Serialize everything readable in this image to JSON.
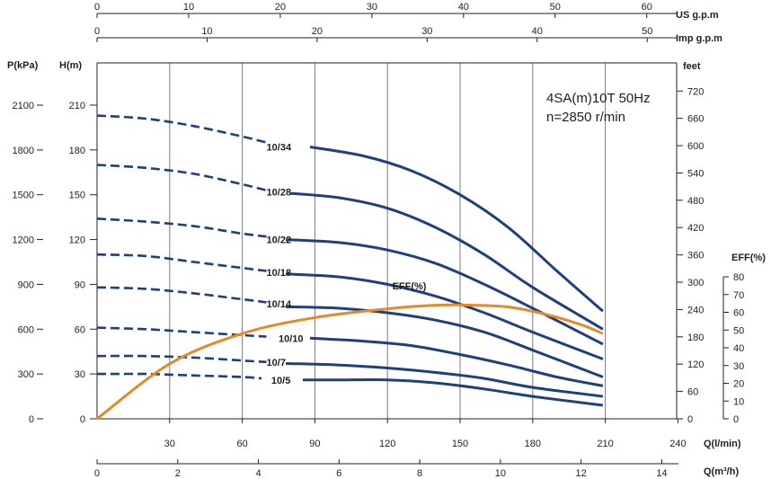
{
  "chart_data": {
    "type": "line",
    "annotation": [
      "4SA(m)10T 50Hz",
      "n=2850 r/min"
    ],
    "axes": {
      "q_lmin": {
        "label": "Q(l/min)",
        "ticks": [
          30,
          60,
          90,
          120,
          150,
          180,
          210,
          240
        ]
      },
      "q_m3h": {
        "label": "Q(m³/h)",
        "ticks": [
          0,
          2,
          4,
          6,
          8,
          10,
          12,
          14
        ]
      },
      "us_gpm": {
        "label": "US  g.p.m",
        "ticks": [
          0,
          10,
          20,
          30,
          40,
          50,
          60
        ]
      },
      "imp_gpm": {
        "label": "Imp  g.p.m",
        "ticks": [
          0,
          10,
          20,
          30,
          40,
          50
        ]
      },
      "head_m": {
        "label": "H(m)",
        "ticks": [
          0,
          30,
          60,
          90,
          120,
          150,
          180,
          210
        ]
      },
      "pressure_kpa": {
        "label": "P(kPa)",
        "ticks": [
          0,
          300,
          600,
          900,
          1200,
          1500,
          1800,
          2100
        ]
      },
      "head_ft": {
        "label": "feet",
        "ticks": [
          0,
          60,
          120,
          180,
          240,
          300,
          360,
          420,
          480,
          540,
          600,
          660,
          720
        ]
      },
      "eff_pct": {
        "label": "EFF(%)",
        "ticks": [
          0,
          10,
          20,
          30,
          40,
          50,
          60,
          70,
          80
        ]
      }
    },
    "xlim_lmin": [
      0,
      240
    ],
    "ylim_m": [
      0,
      240
    ],
    "series": [
      {
        "name": "10/34",
        "label_at": [
          70,
          182
        ],
        "dashed": [
          [
            0,
            203
          ],
          [
            20,
            201
          ],
          [
            40,
            196
          ],
          [
            60,
            189
          ],
          [
            70,
            185
          ]
        ],
        "solid": [
          [
            88,
            182
          ],
          [
            110,
            176
          ],
          [
            130,
            166
          ],
          [
            150,
            150
          ],
          [
            170,
            128
          ],
          [
            190,
            99
          ],
          [
            209,
            72
          ]
        ]
      },
      {
        "name": "10/28",
        "label_at": [
          70,
          152
        ],
        "dashed": [
          [
            0,
            170
          ],
          [
            20,
            168
          ],
          [
            40,
            164
          ],
          [
            60,
            157
          ],
          [
            70,
            153
          ]
        ],
        "solid": [
          [
            80,
            151
          ],
          [
            100,
            148
          ],
          [
            120,
            141
          ],
          [
            140,
            128
          ],
          [
            160,
            110
          ],
          [
            180,
            88
          ],
          [
            209,
            60
          ]
        ]
      },
      {
        "name": "10/22",
        "label_at": [
          70,
          120
        ],
        "dashed": [
          [
            0,
            134
          ],
          [
            20,
            132
          ],
          [
            40,
            129
          ],
          [
            60,
            124
          ],
          [
            70,
            122
          ]
        ],
        "solid": [
          [
            78,
            120
          ],
          [
            100,
            118
          ],
          [
            120,
            113
          ],
          [
            140,
            104
          ],
          [
            160,
            90
          ],
          [
            180,
            74
          ],
          [
            209,
            50
          ]
        ]
      },
      {
        "name": "10/18",
        "label_at": [
          70,
          98
        ],
        "dashed": [
          [
            0,
            110
          ],
          [
            20,
            109
          ],
          [
            40,
            105
          ],
          [
            60,
            101
          ],
          [
            70,
            99
          ]
        ],
        "solid": [
          [
            78,
            97
          ],
          [
            100,
            95
          ],
          [
            120,
            90
          ],
          [
            140,
            82
          ],
          [
            160,
            71
          ],
          [
            180,
            58
          ],
          [
            209,
            40
          ]
        ]
      },
      {
        "name": "10/14",
        "label_at": [
          70,
          77
        ],
        "dashed": [
          [
            0,
            88
          ],
          [
            20,
            87
          ],
          [
            40,
            84
          ],
          [
            60,
            80
          ],
          [
            70,
            78
          ]
        ],
        "solid": [
          [
            78,
            75
          ],
          [
            100,
            74
          ],
          [
            120,
            71
          ],
          [
            140,
            66
          ],
          [
            160,
            58
          ],
          [
            180,
            46
          ],
          [
            209,
            28
          ]
        ]
      },
      {
        "name": "10/10",
        "label_at": [
          75,
          54
        ],
        "dashed": [
          [
            0,
            61
          ],
          [
            20,
            60
          ],
          [
            40,
            58
          ],
          [
            60,
            56
          ],
          [
            70,
            55
          ]
        ],
        "solid": [
          [
            88,
            54
          ],
          [
            110,
            52
          ],
          [
            130,
            49
          ],
          [
            150,
            43
          ],
          [
            170,
            36
          ],
          [
            190,
            28
          ],
          [
            209,
            22
          ]
        ]
      },
      {
        "name": "10/7",
        "label_at": [
          70,
          38
        ],
        "dashed": [
          [
            0,
            42
          ],
          [
            20,
            42
          ],
          [
            40,
            41
          ],
          [
            60,
            39
          ],
          [
            70,
            38
          ]
        ],
        "solid": [
          [
            78,
            37
          ],
          [
            100,
            36
          ],
          [
            120,
            34
          ],
          [
            140,
            31
          ],
          [
            160,
            27
          ],
          [
            180,
            21
          ],
          [
            209,
            15
          ]
        ]
      },
      {
        "name": "10/5",
        "label_at": [
          72,
          26
        ],
        "dashed": [
          [
            0,
            30
          ],
          [
            20,
            30
          ],
          [
            40,
            29
          ],
          [
            60,
            28
          ],
          [
            68,
            27
          ]
        ],
        "solid": [
          [
            85,
            26
          ],
          [
            100,
            26
          ],
          [
            120,
            26
          ],
          [
            140,
            24
          ],
          [
            160,
            20
          ],
          [
            180,
            15
          ],
          [
            209,
            9
          ]
        ]
      }
    ],
    "efficiency": {
      "name": "EFF(%)",
      "label_at": [
        122,
        71
      ],
      "points": [
        [
          0,
          0
        ],
        [
          30,
          31
        ],
        [
          60,
          48
        ],
        [
          90,
          57
        ],
        [
          120,
          62
        ],
        [
          140,
          64
        ],
        [
          155,
          64
        ],
        [
          170,
          63
        ],
        [
          185,
          59
        ],
        [
          200,
          53
        ],
        [
          209,
          48
        ]
      ]
    }
  }
}
